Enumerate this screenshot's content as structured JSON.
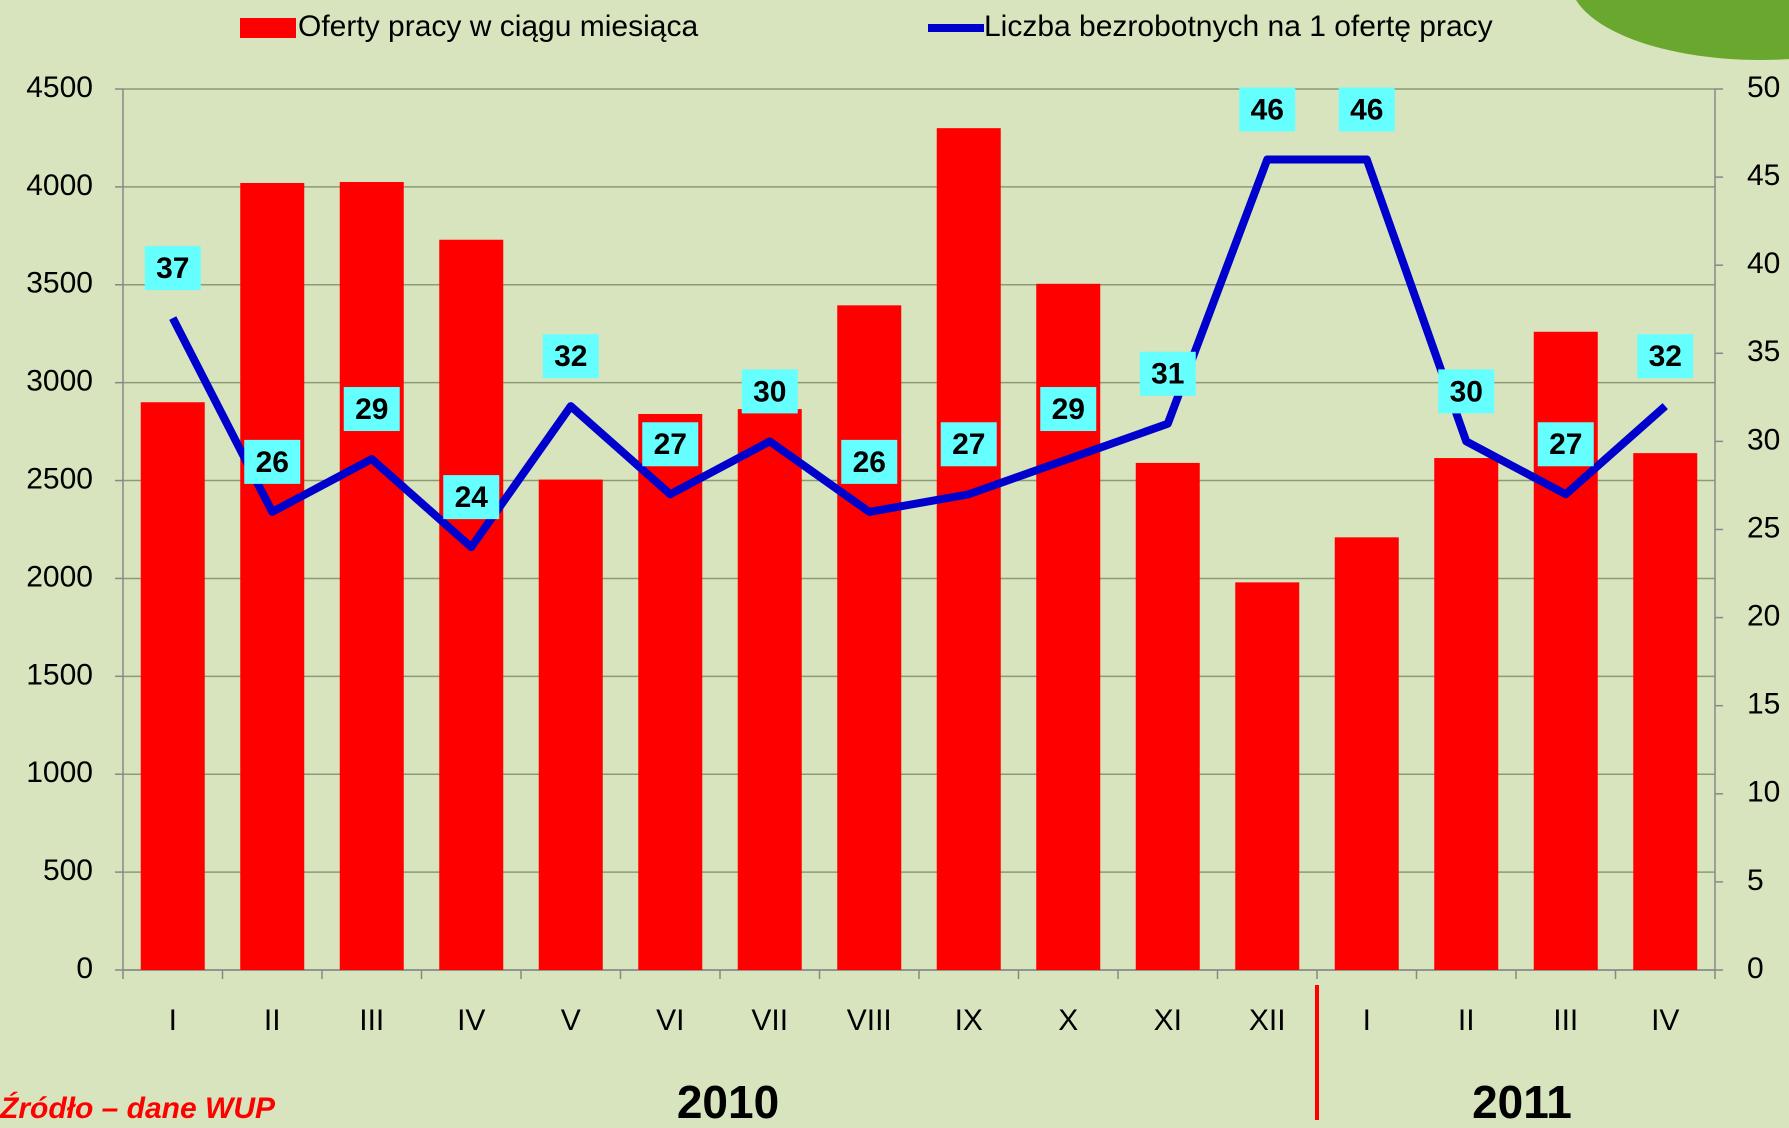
{
  "chart_data": {
    "type": "combo",
    "categories": [
      "I",
      "II",
      "III",
      "IV",
      "V",
      "VI",
      "VII",
      "VIII",
      "IX",
      "X",
      "XI",
      "XII",
      "I",
      "II",
      "III",
      "IV"
    ],
    "series": [
      {
        "name": "Oferty pracy w ciągu miesiąca",
        "type": "bar",
        "color": "#ff0000",
        "values": [
          2900,
          4020,
          4025,
          3730,
          2505,
          2840,
          2865,
          3395,
          4300,
          3505,
          2590,
          1980,
          2210,
          2615,
          3260,
          2640
        ]
      },
      {
        "name": "Liczba bezrobotnych na 1 ofertę pracy",
        "type": "line",
        "axis": "y2",
        "color": "#0000cc",
        "values": [
          37,
          26,
          29,
          24,
          32,
          27,
          30,
          26,
          27,
          29,
          31,
          46,
          46,
          30,
          27,
          32
        ]
      }
    ],
    "ylim": [
      0,
      4500
    ],
    "yticks": [
      0,
      500,
      1000,
      1500,
      2000,
      2500,
      3000,
      3500,
      4000,
      4500
    ],
    "y2lim": [
      0,
      50
    ],
    "y2ticks": [
      0,
      5,
      10,
      15,
      20,
      25,
      30,
      35,
      40,
      45,
      50
    ],
    "grid": true,
    "year_labels": [
      "2010",
      "2011"
    ],
    "source": "Źródło – dane WUP"
  }
}
